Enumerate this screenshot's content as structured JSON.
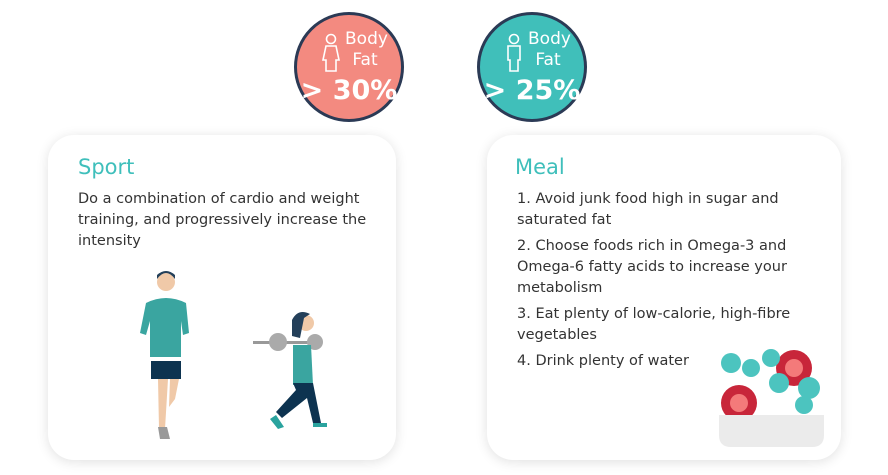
{
  "badges": [
    {
      "label": "Body Fat",
      "value": "> 30%",
      "icon": "female-icon",
      "color": "#f38a80"
    },
    {
      "label": "Body Fat",
      "value": "> 25%",
      "icon": "male-icon",
      "color": "#40bfba"
    }
  ],
  "sport": {
    "title": "Sport",
    "text": "Do a combination of cardio and weight training, and progressively increase the intensity"
  },
  "meal": {
    "title": "Meal",
    "items": [
      "1. Avoid junk food high in sugar and saturated fat",
      "2. Choose foods rich in Omega-3 and Omega-6 fatty acids to increase your metabolism",
      "3. Eat plenty of low-calorie, high-fibre vegetables",
      "4. Drink plenty of water"
    ]
  },
  "colors": {
    "accent": "#3fbfbb",
    "coral": "#f38a80",
    "navy": "#2b3a55"
  }
}
